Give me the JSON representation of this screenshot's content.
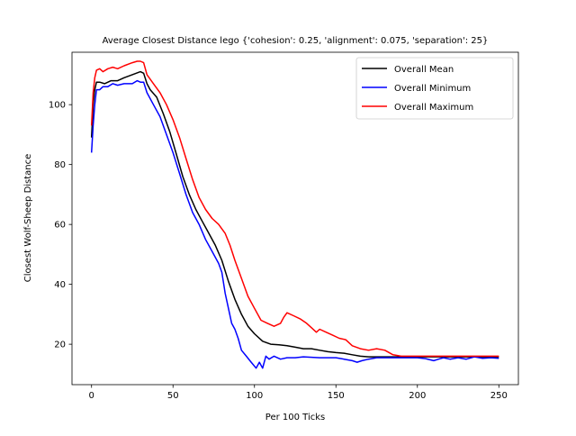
{
  "chart_data": {
    "type": "line",
    "title": "Average Closest Distance lego {'cohesion': 0.25, 'alignment': 0.075, 'separation': 25}",
    "xlabel": "Per 100 Ticks",
    "ylabel": "Closest Wolf-Sheep Distance",
    "xlim": [
      -12,
      262
    ],
    "ylim": [
      6.5,
      117.5
    ],
    "x_ticks": [
      0,
      50,
      100,
      150,
      200,
      250
    ],
    "y_ticks": [
      20,
      40,
      60,
      80,
      100
    ],
    "grid": false,
    "legend_position": "top-right",
    "series": [
      {
        "name": "Overall Mean",
        "color": "#000000",
        "points": [
          [
            0,
            89
          ],
          [
            1,
            100
          ],
          [
            2,
            105
          ],
          [
            3,
            107.5
          ],
          [
            5,
            107.5
          ],
          [
            8,
            107
          ],
          [
            12,
            108
          ],
          [
            16,
            108
          ],
          [
            20,
            109
          ],
          [
            25,
            110
          ],
          [
            30,
            111
          ],
          [
            32,
            110.5
          ],
          [
            34,
            107
          ],
          [
            36,
            105
          ],
          [
            40,
            102.5
          ],
          [
            44,
            97
          ],
          [
            48,
            91
          ],
          [
            52,
            83.5
          ],
          [
            56,
            76
          ],
          [
            60,
            70
          ],
          [
            64,
            65
          ],
          [
            68,
            61
          ],
          [
            72,
            57
          ],
          [
            76,
            53
          ],
          [
            80,
            48
          ],
          [
            84,
            41
          ],
          [
            88,
            35
          ],
          [
            92,
            30
          ],
          [
            96,
            26
          ],
          [
            100,
            23.5
          ],
          [
            105,
            21
          ],
          [
            110,
            20
          ],
          [
            115,
            19.8
          ],
          [
            120,
            19.5
          ],
          [
            125,
            19
          ],
          [
            130,
            18.5
          ],
          [
            135,
            18.5
          ],
          [
            140,
            18
          ],
          [
            145,
            17.5
          ],
          [
            150,
            17.2
          ],
          [
            155,
            17
          ],
          [
            160,
            16.5
          ],
          [
            165,
            16
          ],
          [
            170,
            15.8
          ],
          [
            180,
            15.8
          ],
          [
            190,
            15.8
          ],
          [
            200,
            15.8
          ],
          [
            210,
            15.8
          ],
          [
            220,
            15.8
          ],
          [
            230,
            15.8
          ],
          [
            240,
            15.8
          ],
          [
            250,
            15.8
          ]
        ]
      },
      {
        "name": "Overall Minimum",
        "color": "#0000ff",
        "points": [
          [
            0,
            84
          ],
          [
            1,
            93
          ],
          [
            2,
            100
          ],
          [
            3,
            105
          ],
          [
            5,
            105
          ],
          [
            7,
            106
          ],
          [
            10,
            106
          ],
          [
            13,
            107
          ],
          [
            16,
            106.5
          ],
          [
            20,
            107
          ],
          [
            25,
            107
          ],
          [
            28,
            108
          ],
          [
            30,
            107.5
          ],
          [
            32,
            107.5
          ],
          [
            34,
            104
          ],
          [
            38,
            100
          ],
          [
            42,
            96
          ],
          [
            46,
            90
          ],
          [
            50,
            84
          ],
          [
            54,
            77
          ],
          [
            58,
            70
          ],
          [
            62,
            64
          ],
          [
            66,
            60
          ],
          [
            70,
            55
          ],
          [
            74,
            51
          ],
          [
            78,
            47
          ],
          [
            80,
            44
          ],
          [
            82,
            37
          ],
          [
            84,
            32
          ],
          [
            86,
            27
          ],
          [
            88,
            25
          ],
          [
            90,
            22
          ],
          [
            92,
            18
          ],
          [
            95,
            16
          ],
          [
            98,
            14
          ],
          [
            101,
            12
          ],
          [
            103,
            14
          ],
          [
            105,
            12
          ],
          [
            107,
            16
          ],
          [
            109,
            15
          ],
          [
            112,
            16
          ],
          [
            116,
            15
          ],
          [
            120,
            15.5
          ],
          [
            125,
            15.5
          ],
          [
            130,
            15.8
          ],
          [
            140,
            15.5
          ],
          [
            150,
            15.5
          ],
          [
            155,
            15
          ],
          [
            160,
            14.5
          ],
          [
            163,
            14
          ],
          [
            166,
            14.5
          ],
          [
            170,
            15
          ],
          [
            175,
            15.5
          ],
          [
            180,
            15.5
          ],
          [
            190,
            15.5
          ],
          [
            200,
            15.5
          ],
          [
            205,
            15.2
          ],
          [
            210,
            14.5
          ],
          [
            213,
            15
          ],
          [
            216,
            15.5
          ],
          [
            220,
            15
          ],
          [
            225,
            15.5
          ],
          [
            230,
            15
          ],
          [
            235,
            15.8
          ],
          [
            240,
            15.3
          ],
          [
            245,
            15.5
          ],
          [
            250,
            15.3
          ]
        ]
      },
      {
        "name": "Overall Maximum",
        "color": "#ff0000",
        "points": [
          [
            0,
            93
          ],
          [
            1,
            104
          ],
          [
            2,
            109
          ],
          [
            3,
            111.5
          ],
          [
            5,
            112
          ],
          [
            7,
            111
          ],
          [
            10,
            112
          ],
          [
            13,
            112.5
          ],
          [
            16,
            112
          ],
          [
            20,
            113
          ],
          [
            25,
            114
          ],
          [
            28,
            114.5
          ],
          [
            30,
            114.5
          ],
          [
            32,
            114
          ],
          [
            34,
            110
          ],
          [
            38,
            107
          ],
          [
            42,
            104
          ],
          [
            46,
            100
          ],
          [
            50,
            95
          ],
          [
            54,
            89
          ],
          [
            58,
            82
          ],
          [
            62,
            75
          ],
          [
            66,
            69
          ],
          [
            70,
            65
          ],
          [
            74,
            62
          ],
          [
            78,
            60
          ],
          [
            82,
            57
          ],
          [
            85,
            53
          ],
          [
            88,
            48
          ],
          [
            92,
            42
          ],
          [
            96,
            36
          ],
          [
            100,
            32
          ],
          [
            104,
            28
          ],
          [
            108,
            27
          ],
          [
            112,
            26
          ],
          [
            116,
            27
          ],
          [
            118,
            29
          ],
          [
            120,
            30.5
          ],
          [
            124,
            29.5
          ],
          [
            128,
            28.5
          ],
          [
            132,
            27
          ],
          [
            135,
            25.5
          ],
          [
            138,
            24
          ],
          [
            140,
            25
          ],
          [
            144,
            24
          ],
          [
            148,
            23
          ],
          [
            152,
            22
          ],
          [
            156,
            21.5
          ],
          [
            160,
            19.5
          ],
          [
            165,
            18.5
          ],
          [
            170,
            18
          ],
          [
            175,
            18.5
          ],
          [
            180,
            18
          ],
          [
            185,
            16.5
          ],
          [
            190,
            16
          ],
          [
            200,
            16
          ],
          [
            210,
            16
          ],
          [
            220,
            16
          ],
          [
            230,
            16
          ],
          [
            240,
            16
          ],
          [
            250,
            16
          ]
        ]
      }
    ]
  }
}
